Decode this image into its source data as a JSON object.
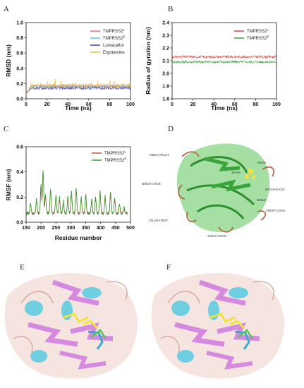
{
  "panels": {
    "A": "A",
    "B": "B",
    "C": "C",
    "D": "D",
    "E": "E",
    "F": "F"
  },
  "chart_data": [
    {
      "id": "A",
      "type": "line",
      "xlabel": "Time (ns)",
      "ylabel": "RMSD (nm)",
      "xlim": [
        0,
        100
      ],
      "ylim": [
        0,
        1.0
      ],
      "xticks": [
        0,
        20,
        40,
        60,
        80,
        100
      ],
      "yticks": [
        0,
        0.2,
        0.4,
        0.6,
        0.8,
        1.0
      ],
      "legend_position": "top-right",
      "series": [
        {
          "name": "TMPRSS2",
          "sup": "L",
          "color": "#e8647a",
          "base": 0.17,
          "noise": 0.015
        },
        {
          "name": "TMPRSS2",
          "sup": "E",
          "color": "#5bb8e6",
          "base": 0.16,
          "noise": 0.015
        },
        {
          "name": "Lumacaftor",
          "color": "#3a2fb8",
          "base": 0.14,
          "noise": 0.02
        },
        {
          "name": "Ergotamine",
          "color": "#e0b84a",
          "base": 0.17,
          "noise": 0.03
        }
      ]
    },
    {
      "id": "B",
      "type": "line",
      "xlabel": "Time (ns)",
      "ylabel": "Radius of gyration (nm)",
      "xlim": [
        0,
        100
      ],
      "ylim": [
        1.8,
        2.4
      ],
      "xticks": [
        0,
        20,
        40,
        60,
        80,
        100
      ],
      "yticks": [
        1.8,
        1.9,
        2.0,
        2.1,
        2.2,
        2.3,
        2.4
      ],
      "legend_position": "top-right",
      "series": [
        {
          "name": "TMPRSS2",
          "sup": "L",
          "color": "#d83a2e",
          "base": 2.13,
          "noise": 0.01
        },
        {
          "name": "TMPRSS2",
          "sup": "E",
          "color": "#2e9a2e",
          "base": 2.09,
          "noise": 0.01
        }
      ]
    },
    {
      "id": "C",
      "type": "line",
      "xlabel": "Residue number",
      "ylabel": "RMSF (nm)",
      "xlim": [
        150,
        500
      ],
      "ylim": [
        0,
        0.6
      ],
      "xticks": [
        150,
        200,
        250,
        300,
        350,
        400,
        450,
        500
      ],
      "yticks": [
        0,
        0.2,
        0.4,
        0.6
      ],
      "legend_position": "top-right",
      "peaks": [
        [
          165,
          0.15
        ],
        [
          185,
          0.19
        ],
        [
          200,
          0.3
        ],
        [
          207,
          0.42
        ],
        [
          215,
          0.22
        ],
        [
          232,
          0.27
        ],
        [
          250,
          0.22
        ],
        [
          262,
          0.2
        ],
        [
          275,
          0.17
        ],
        [
          290,
          0.2
        ],
        [
          302,
          0.25
        ],
        [
          318,
          0.27
        ],
        [
          335,
          0.2
        ],
        [
          350,
          0.23
        ],
        [
          370,
          0.18
        ],
        [
          383,
          0.2
        ],
        [
          398,
          0.25
        ],
        [
          415,
          0.21
        ],
        [
          433,
          0.24
        ],
        [
          447,
          0.19
        ],
        [
          463,
          0.15
        ],
        [
          478,
          0.12
        ]
      ],
      "series": [
        {
          "name": "TMPRSS2",
          "sup": "L",
          "color": "#c24a36"
        },
        {
          "name": "TMPRSS2",
          "sup": "E",
          "color": "#2e9a2e"
        }
      ]
    }
  ],
  "structure_labels": {
    "thr214": "THR214-VAL219",
    "his296": "HIS296",
    "asp345": "ASP345",
    "ser318": "SER318-GLY325",
    "ser441": "SER441",
    "ser183": "SER183-LYS186",
    "thr387": "THR387-LYS392",
    "val200": "VAL200-TYR207",
    "asp252": "ASP252-ASP254"
  }
}
